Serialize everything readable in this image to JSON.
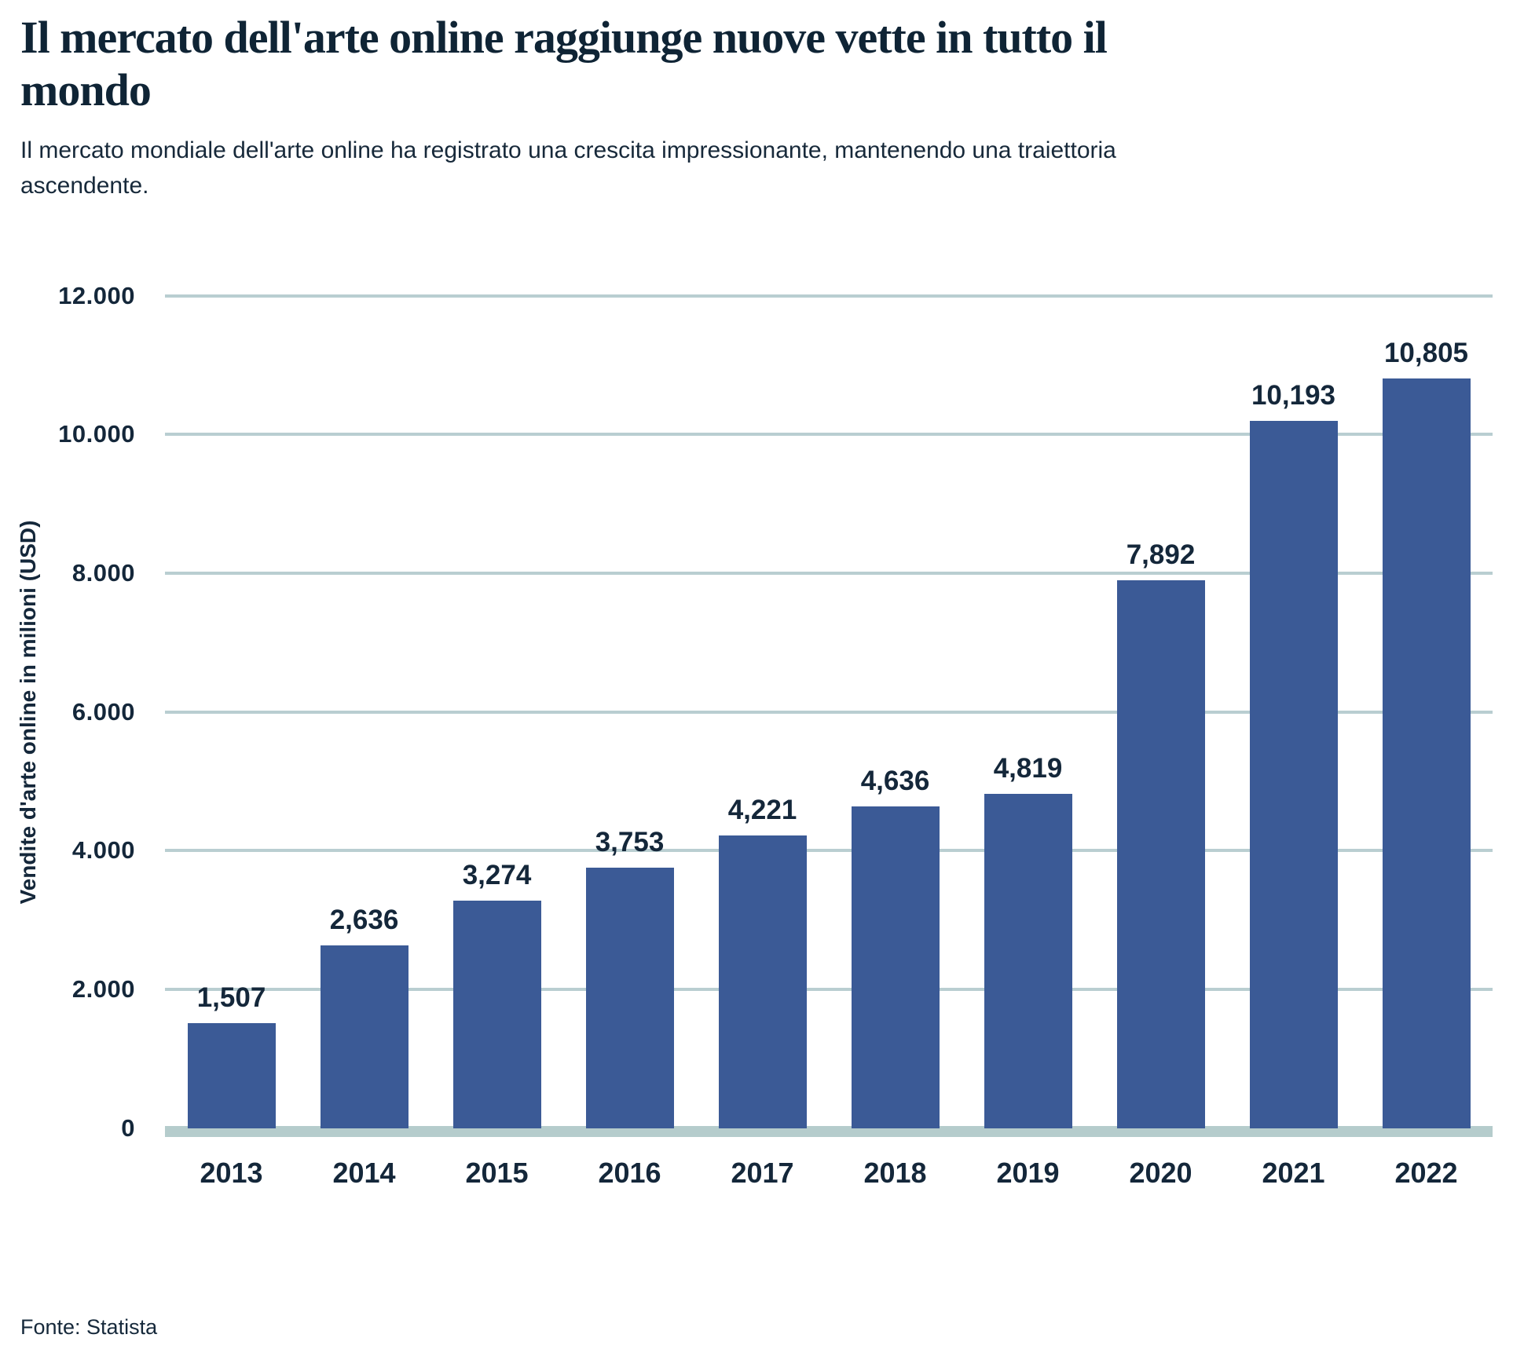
{
  "header": {
    "title": "Il mercato dell'arte online raggiunge nuove vette in tutto il mondo",
    "subtitle": "Il mercato mondiale dell'arte online ha registrato una crescita impressionante, mantenendo una traiettoria ascendente."
  },
  "chart_data": {
    "type": "bar",
    "title": "Il mercato dell'arte online raggiunge nuove vette in tutto il mondo",
    "categories": [
      "2013",
      "2014",
      "2015",
      "2016",
      "2017",
      "2018",
      "2019",
      "2020",
      "2021",
      "2022"
    ],
    "values": [
      1507,
      2636,
      3274,
      3753,
      4221,
      4636,
      4819,
      7892,
      10193,
      10805
    ],
    "value_labels": [
      "1,507",
      "2,636",
      "3,274",
      "3,753",
      "4,221",
      "4,636",
      "4,819",
      "7,892",
      "10,193",
      "10,805"
    ],
    "xlabel": "",
    "ylabel": "Vendite d'arte online in milioni (USD)",
    "ylim": [
      0,
      12000
    ],
    "yticks": [
      {
        "value": 12000,
        "label": "12.000"
      },
      {
        "value": 10000,
        "label": "10.000"
      },
      {
        "value": 8000,
        "label": "8.000"
      },
      {
        "value": 6000,
        "label": "6.000"
      },
      {
        "value": 4000,
        "label": "4.000"
      },
      {
        "value": 2000,
        "label": "2.000"
      },
      {
        "value": 0,
        "label": "0"
      }
    ],
    "grid": true,
    "legend": "none",
    "bar_color": "#3b5a96",
    "gridline_color": "#b9ced1",
    "baseline_color": "#b5cccc",
    "text_color": "#14273a"
  },
  "footer": {
    "source": "Fonte: Statista"
  }
}
